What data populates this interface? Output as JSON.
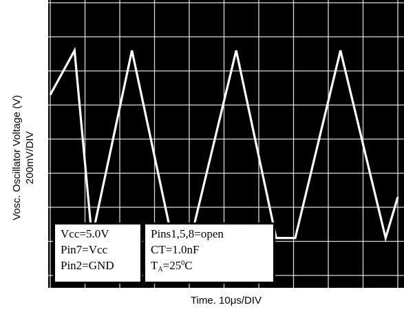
{
  "y_axis": {
    "label": "Vosc. Oscillator Voltage (V)",
    "scale": "200mV/DIV"
  },
  "x_axis": {
    "label_prefix": "Time. 10",
    "label_mu": "μ",
    "label_suffix": "s/DIV"
  },
  "conditions_left": [
    "Vcc=5.0V",
    "Pin7=Vcc",
    "Pin2=GND"
  ],
  "conditions_right": {
    "line1": "Pins1,5,8=open",
    "line2": "CT=1.0nF",
    "line3_t": "T",
    "line3_sub": "A",
    "line3_mid": "=25",
    "line3_sup": "0",
    "line3_end": "C"
  },
  "colors": {
    "screen": "#000000",
    "grid": "#ffffff",
    "trace": "#ffffff"
  },
  "chart_data": {
    "type": "line",
    "grid": true,
    "divisions_x": 10,
    "divisions_y": 8,
    "x_unit": "div (10μs/div)",
    "y_unit": "div (200mV/div)",
    "xlim": [
      0,
      10
    ],
    "ylim": [
      0,
      8
    ],
    "series": [
      {
        "x": [
          0,
          0.7,
          1.2,
          2.35,
          3.5,
          4.05,
          5.35,
          6.5,
          7.05,
          8.35,
          9.65,
          10
        ],
        "y": [
          5.3,
          6.6,
          1.1,
          6.6,
          1.1,
          1.1,
          6.6,
          1.1,
          1.1,
          6.6,
          1.1,
          2.3
        ]
      }
    ]
  }
}
